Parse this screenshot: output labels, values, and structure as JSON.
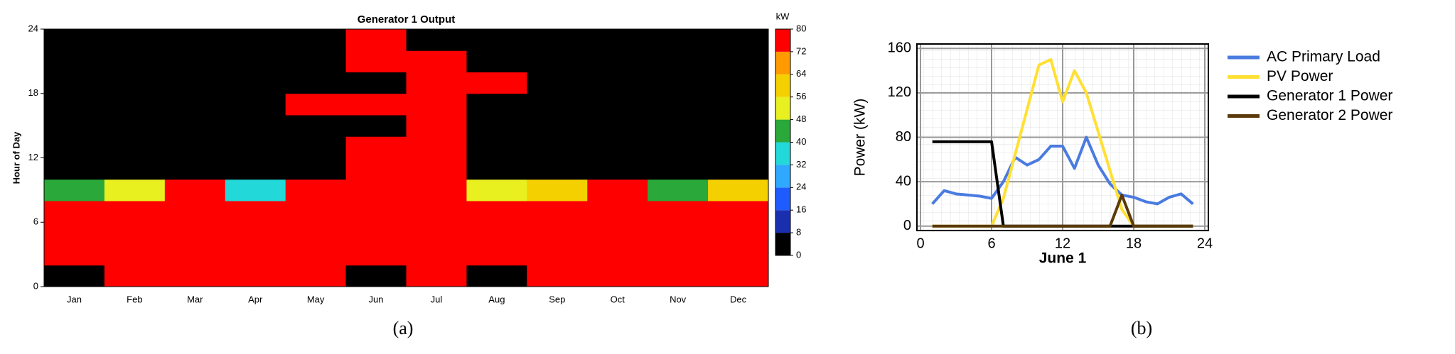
{
  "chart_data": [
    {
      "type": "heatmap",
      "title": "Generator 1 Output",
      "y_label": "Hour of Day",
      "caption": "(a)",
      "colorbar_label": "kW",
      "categories": [
        "Jan",
        "Feb",
        "Mar",
        "Apr",
        "May",
        "Jun",
        "Jul",
        "Aug",
        "Sep",
        "Oct",
        "Nov",
        "Dec"
      ],
      "y_bins": [
        0,
        2,
        4,
        6,
        8,
        10,
        12,
        14,
        16,
        18,
        20,
        22,
        24
      ],
      "values": [
        [
          0,
          80,
          80,
          80,
          80,
          0,
          80,
          0,
          80,
          80,
          80,
          80
        ],
        [
          80,
          80,
          80,
          80,
          80,
          80,
          80,
          80,
          80,
          80,
          80,
          80
        ],
        [
          80,
          80,
          80,
          80,
          80,
          80,
          80,
          80,
          80,
          80,
          80,
          80
        ],
        [
          80,
          80,
          80,
          80,
          80,
          80,
          80,
          80,
          80,
          80,
          80,
          80
        ],
        [
          40,
          48,
          80,
          32,
          80,
          80,
          80,
          48,
          56,
          80,
          40,
          56
        ],
        [
          0,
          0,
          0,
          0,
          0,
          80,
          80,
          0,
          0,
          0,
          0,
          0
        ],
        [
          0,
          0,
          0,
          0,
          0,
          80,
          80,
          0,
          0,
          0,
          0,
          0
        ],
        [
          0,
          0,
          0,
          0,
          0,
          0,
          80,
          0,
          0,
          0,
          0,
          0
        ],
        [
          0,
          0,
          0,
          0,
          80,
          80,
          80,
          0,
          0,
          0,
          0,
          0
        ],
        [
          0,
          0,
          0,
          0,
          0,
          0,
          80,
          80,
          0,
          0,
          0,
          0
        ],
        [
          0,
          0,
          0,
          0,
          0,
          80,
          80,
          0,
          0,
          0,
          0,
          0
        ],
        [
          0,
          0,
          0,
          0,
          0,
          80,
          0,
          0,
          0,
          0,
          0,
          0
        ]
      ],
      "ylim": [
        0,
        24
      ],
      "yticks": [
        0,
        6,
        12,
        18,
        24
      ],
      "zlim": [
        0,
        80
      ],
      "zticks": [
        0,
        8,
        16,
        24,
        32,
        40,
        48,
        56,
        64,
        72,
        80
      ],
      "colors": [
        "#000000",
        "#1a2fb0",
        "#1f5cff",
        "#2fa8ff",
        "#22d8d8",
        "#2aa83a",
        "#e8f020",
        "#f5d000",
        "#ff9a00",
        "#ff0000"
      ]
    },
    {
      "type": "line",
      "caption": "(b)",
      "x_label": "June 1",
      "y_label": "Power (kW)",
      "x": [
        1,
        2,
        3,
        4,
        5,
        6,
        7,
        8,
        9,
        10,
        11,
        12,
        13,
        14,
        15,
        16,
        17,
        18,
        19,
        20,
        21,
        22,
        23
      ],
      "series": [
        {
          "name": "AC Primary Load",
          "color": "#4a7be0",
          "values": [
            20,
            32,
            29,
            28,
            27,
            25,
            40,
            62,
            55,
            60,
            72,
            72,
            52,
            80,
            55,
            38,
            28,
            26,
            22,
            20,
            26,
            29,
            20
          ]
        },
        {
          "name": "PV Power",
          "color": "#ffe033",
          "values": [
            0,
            0,
            0,
            0,
            0,
            0,
            25,
            65,
            105,
            145,
            150,
            112,
            140,
            120,
            85,
            50,
            15,
            0,
            0,
            0,
            0,
            0,
            0
          ]
        },
        {
          "name": "Generator 1 Power",
          "color": "#000000",
          "values": [
            76,
            76,
            76,
            76,
            76,
            76,
            0,
            0,
            0,
            0,
            0,
            0,
            0,
            0,
            0,
            0,
            0,
            0,
            0,
            0,
            0,
            0,
            0
          ]
        },
        {
          "name": "Generator 2 Power",
          "color": "#5a3a0a",
          "values": [
            0,
            0,
            0,
            0,
            0,
            0,
            0,
            0,
            0,
            0,
            0,
            0,
            0,
            0,
            0,
            0,
            28,
            0,
            0,
            0,
            0,
            0,
            0
          ]
        }
      ],
      "xlim": [
        -0.3,
        24.3
      ],
      "ylim": [
        -4,
        164
      ],
      "xticks": [
        0,
        6,
        12,
        18,
        24
      ],
      "yticks": [
        0,
        40,
        80,
        120,
        160
      ],
      "grid": true
    }
  ]
}
